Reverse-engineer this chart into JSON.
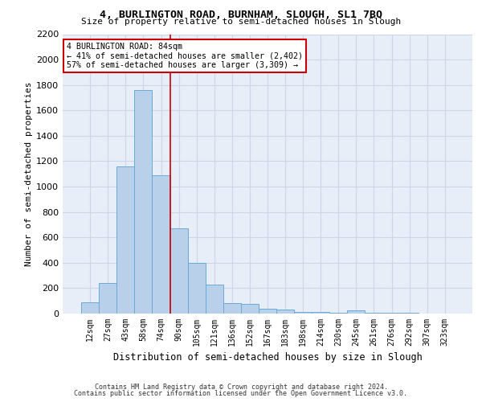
{
  "title": "4, BURLINGTON ROAD, BURNHAM, SLOUGH, SL1 7BQ",
  "subtitle": "Size of property relative to semi-detached houses in Slough",
  "xlabel": "Distribution of semi-detached houses by size in Slough",
  "ylabel": "Number of semi-detached properties",
  "bar_labels": [
    "12sqm",
    "27sqm",
    "43sqm",
    "58sqm",
    "74sqm",
    "90sqm",
    "105sqm",
    "121sqm",
    "136sqm",
    "152sqm",
    "167sqm",
    "183sqm",
    "198sqm",
    "214sqm",
    "230sqm",
    "245sqm",
    "261sqm",
    "276sqm",
    "292sqm",
    "307sqm",
    "323sqm"
  ],
  "bar_values": [
    90,
    240,
    1160,
    1760,
    1090,
    670,
    400,
    225,
    85,
    75,
    40,
    30,
    15,
    10,
    5,
    25,
    5,
    5,
    5,
    0,
    0
  ],
  "bar_color": "#b8d0ea",
  "bar_edge_color": "#6aaad4",
  "grid_color": "#ccd6e8",
  "background_color": "#e8eef8",
  "annotation_title": "4 BURLINGTON ROAD: 84sqm",
  "annotation_line1": "← 41% of semi-detached houses are smaller (2,402)",
  "annotation_line2": "57% of semi-detached houses are larger (3,309) →",
  "annotation_box_color": "#ffffff",
  "annotation_box_edge": "#cc0000",
  "vline_color": "#cc0000",
  "vline_x": 4.5,
  "ylim": [
    0,
    2200
  ],
  "yticks": [
    0,
    200,
    400,
    600,
    800,
    1000,
    1200,
    1400,
    1600,
    1800,
    2000,
    2200
  ],
  "footnote1": "Contains HM Land Registry data © Crown copyright and database right 2024.",
  "footnote2": "Contains public sector information licensed under the Open Government Licence v3.0."
}
